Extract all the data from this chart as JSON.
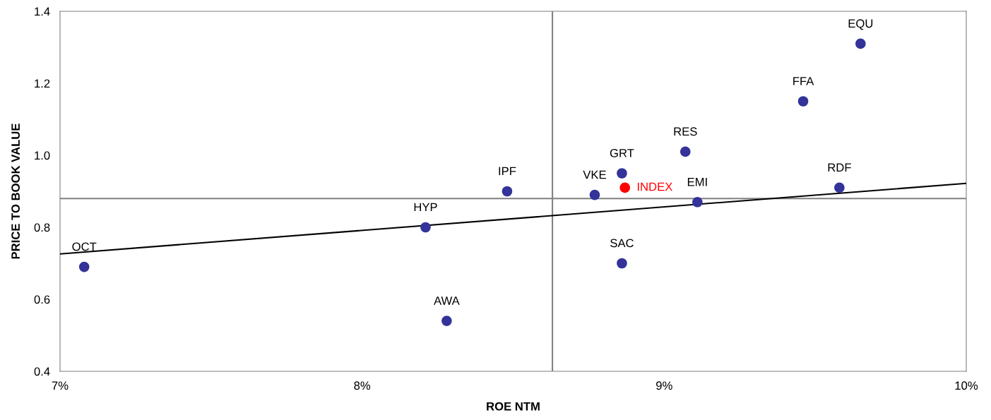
{
  "chart_data": {
    "type": "scatter",
    "xlabel": "ROE NTM",
    "ylabel": "PRICE TO BOOK VALUE",
    "xlim": [
      7,
      10
    ],
    "xticks": [
      {
        "value": 7,
        "label": "7%"
      },
      {
        "value": 8,
        "label": "8%"
      },
      {
        "value": 9,
        "label": "9%"
      },
      {
        "value": 10,
        "label": "10%"
      }
    ],
    "ylim": [
      0.4,
      1.4
    ],
    "yticks": [
      0.4,
      0.6,
      0.8,
      {
        "value": 1,
        "label": "1.0"
      },
      1.2,
      1.4
    ],
    "grid": false,
    "legend": false,
    "marker": "circle",
    "series": [
      {
        "color": "#33339a",
        "x": [
          7.08,
          8.21,
          8.28,
          8.48,
          8.77,
          8.86,
          8.86,
          9.07,
          9.11,
          9.46,
          9.58,
          9.65
        ],
        "values": [
          0.69,
          0.8,
          0.54,
          0.9,
          0.89,
          0.95,
          0.7,
          1.01,
          0.87,
          1.15,
          0.91,
          1.31
        ]
      },
      {
        "name": "INDEX",
        "color": "#ff0000",
        "x": [
          8.87
        ],
        "values": [
          0.91
        ]
      },
      {
        "type": "line",
        "marker": "none",
        "color": "#000000",
        "x": [
          7,
          10
        ],
        "values": [
          0.726,
          0.922
        ]
      }
    ],
    "ref_lines": [
      {
        "axis": "x",
        "value": 8.63,
        "color": "#808080"
      },
      {
        "axis": "y",
        "value": 0.88,
        "color": "#808080"
      }
    ],
    "annotations": [
      {
        "text": "OCT",
        "x": 7.08,
        "y": 0.69
      },
      {
        "text": "HYP",
        "x": 8.21,
        "y": 0.8
      },
      {
        "text": "AWA",
        "x": 8.28,
        "y": 0.54
      },
      {
        "text": "IPF",
        "x": 8.48,
        "y": 0.9
      },
      {
        "text": "VKE",
        "x": 8.77,
        "y": 0.89
      },
      {
        "text": "GRT",
        "x": 8.86,
        "y": 0.95
      },
      {
        "text": "SAC",
        "x": 8.86,
        "y": 0.7
      },
      {
        "text": "RES",
        "x": 9.07,
        "y": 1.01
      },
      {
        "text": "EMI",
        "x": 9.11,
        "y": 0.87
      },
      {
        "text": "FFA",
        "x": 9.46,
        "y": 1.15
      },
      {
        "text": "RDF",
        "x": 9.58,
        "y": 0.91
      },
      {
        "text": "EQU",
        "x": 9.65,
        "y": 1.31
      }
    ]
  }
}
